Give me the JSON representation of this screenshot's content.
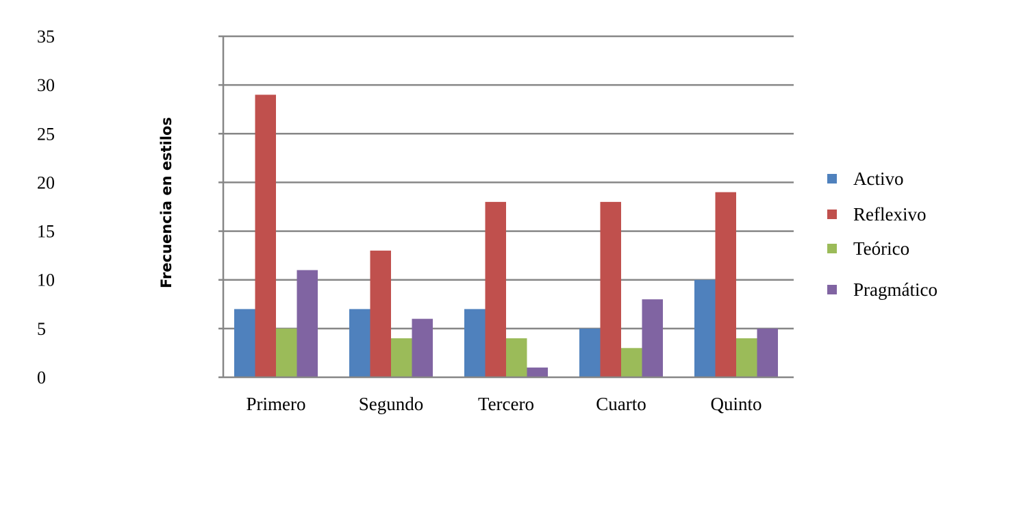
{
  "chart_data": {
    "type": "bar",
    "title": "",
    "xlabel": "",
    "ylabel": "Frecuencia en estilos",
    "categories": [
      "Primero",
      "Segundo",
      "Tercero",
      "Cuarto",
      "Quinto"
    ],
    "series": [
      {
        "name": "Activo",
        "color": "#4f81bd",
        "values": [
          7,
          7,
          7,
          5,
          10
        ]
      },
      {
        "name": "Reflexivo",
        "color": "#c0504d",
        "values": [
          29,
          13,
          18,
          18,
          19
        ]
      },
      {
        "name": "Teórico",
        "color": "#9bbb59",
        "values": [
          5,
          4,
          4,
          3,
          4
        ]
      },
      {
        "name": "Pragmático",
        "color": "#8064a2",
        "values": [
          11,
          6,
          1,
          8,
          5
        ]
      }
    ],
    "ylim": [
      0,
      35
    ],
    "yticks": [
      "0",
      "5",
      "10",
      "15",
      "20",
      "25",
      "30",
      "35"
    ],
    "grid": true,
    "legend": "right",
    "gridline_color": "#868686"
  }
}
